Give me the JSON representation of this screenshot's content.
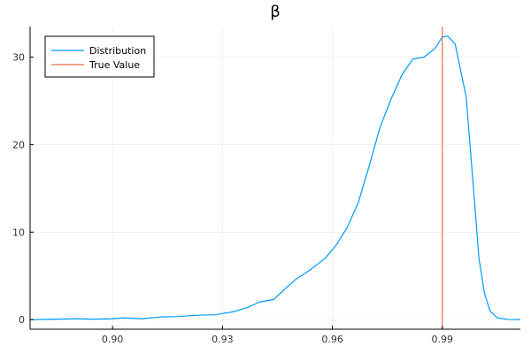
{
  "chart_data": {
    "type": "line",
    "title": "β",
    "xlabel": "",
    "ylabel": "",
    "xlim": [
      0.8775,
      1.0113
    ],
    "ylim": [
      -1.1,
      33.5
    ],
    "xticks": [
      {
        "value": 0.9,
        "label": "0.90"
      },
      {
        "value": 0.93,
        "label": "0.93"
      },
      {
        "value": 0.96,
        "label": "0.96"
      },
      {
        "value": 0.99,
        "label": "0.99"
      }
    ],
    "yticks": [
      {
        "value": 0,
        "label": "0"
      },
      {
        "value": 10,
        "label": "10"
      },
      {
        "value": 20,
        "label": "20"
      },
      {
        "value": 30,
        "label": "30"
      }
    ],
    "grid": true,
    "legend": {
      "placement": "top-left"
    },
    "series": [
      {
        "name": "Distribution",
        "color": "#009AFA",
        "points": [
          [
            0.8775,
            0.0
          ],
          [
            0.885,
            0.05
          ],
          [
            0.89,
            0.1
          ],
          [
            0.895,
            0.05
          ],
          [
            0.9,
            0.1
          ],
          [
            0.903,
            0.2
          ],
          [
            0.908,
            0.1
          ],
          [
            0.913,
            0.3
          ],
          [
            0.918,
            0.35
          ],
          [
            0.923,
            0.5
          ],
          [
            0.928,
            0.55
          ],
          [
            0.933,
            0.9
          ],
          [
            0.937,
            1.4
          ],
          [
            0.94,
            2.0
          ],
          [
            0.944,
            2.3
          ],
          [
            0.947,
            3.5
          ],
          [
            0.95,
            4.6
          ],
          [
            0.954,
            5.7
          ],
          [
            0.958,
            7.0
          ],
          [
            0.961,
            8.5
          ],
          [
            0.964,
            10.5
          ],
          [
            0.967,
            13.3
          ],
          [
            0.97,
            17.5
          ],
          [
            0.973,
            22.0
          ],
          [
            0.976,
            25.2
          ],
          [
            0.979,
            28.0
          ],
          [
            0.982,
            29.8
          ],
          [
            0.985,
            30.0
          ],
          [
            0.988,
            31.0
          ],
          [
            0.99,
            32.3
          ],
          [
            0.9915,
            32.4
          ],
          [
            0.9935,
            31.5
          ],
          [
            0.9965,
            25.5
          ],
          [
            0.9985,
            15.0
          ],
          [
            1.0,
            7.0
          ],
          [
            1.0015,
            3.0
          ],
          [
            1.003,
            1.0
          ],
          [
            1.005,
            0.2
          ],
          [
            1.008,
            0.02
          ],
          [
            1.0113,
            0.0
          ]
        ]
      },
      {
        "name": "True Value",
        "color": "#E26F46",
        "vline": 0.99
      }
    ]
  }
}
